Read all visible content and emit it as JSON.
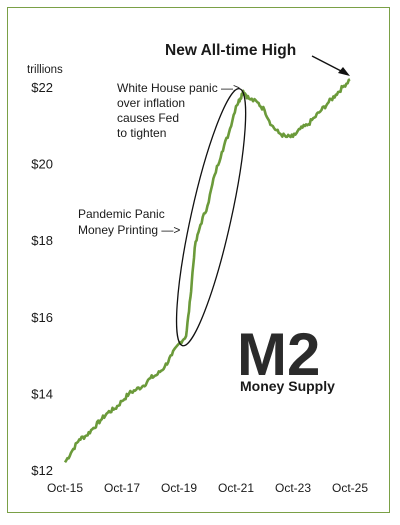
{
  "chart_data": {
    "type": "line",
    "title": "New All-time High",
    "ylabel": "trillions",
    "xlabel": "",
    "ylim": [
      12,
      22.5
    ],
    "xlim": [
      2015.75,
      2025.75
    ],
    "y_ticks": [
      {
        "value": 12,
        "label": "$12"
      },
      {
        "value": 14,
        "label": "$14"
      },
      {
        "value": 16,
        "label": "$16"
      },
      {
        "value": 18,
        "label": "$18"
      },
      {
        "value": 20,
        "label": "$20"
      },
      {
        "value": 22,
        "label": "$22"
      }
    ],
    "x_ticks": [
      {
        "value": 2015.75,
        "label": "Oct-15"
      },
      {
        "value": 2017.75,
        "label": "Oct-17"
      },
      {
        "value": 2019.75,
        "label": "Oct-19"
      },
      {
        "value": 2021.75,
        "label": "Oct-21"
      },
      {
        "value": 2023.75,
        "label": "Oct-23"
      },
      {
        "value": 2025.75,
        "label": "Oct-25"
      }
    ],
    "grid": false,
    "series": [
      {
        "color": "#6b9a3a",
        "points": [
          [
            2015.75,
            12.2
          ],
          [
            2016.0,
            12.5
          ],
          [
            2016.25,
            12.8
          ],
          [
            2016.5,
            12.9
          ],
          [
            2016.75,
            13.1
          ],
          [
            2017.0,
            13.3
          ],
          [
            2017.25,
            13.5
          ],
          [
            2017.5,
            13.6
          ],
          [
            2017.75,
            13.8
          ],
          [
            2018.0,
            14.0
          ],
          [
            2018.25,
            14.1
          ],
          [
            2018.5,
            14.2
          ],
          [
            2018.75,
            14.4
          ],
          [
            2019.0,
            14.5
          ],
          [
            2019.25,
            14.7
          ],
          [
            2019.5,
            15.0
          ],
          [
            2019.75,
            15.3
          ],
          [
            2020.0,
            15.5
          ],
          [
            2020.15,
            16.5
          ],
          [
            2020.3,
            17.8
          ],
          [
            2020.5,
            18.4
          ],
          [
            2020.75,
            18.9
          ],
          [
            2021.0,
            19.7
          ],
          [
            2021.25,
            20.3
          ],
          [
            2021.5,
            20.8
          ],
          [
            2021.75,
            21.5
          ],
          [
            2021.9,
            21.7
          ],
          [
            2022.0,
            21.9
          ],
          [
            2022.2,
            21.7
          ],
          [
            2022.5,
            21.6
          ],
          [
            2022.75,
            21.4
          ],
          [
            2023.0,
            21.0
          ],
          [
            2023.25,
            20.8
          ],
          [
            2023.5,
            20.7
          ],
          [
            2023.75,
            20.7
          ],
          [
            2024.0,
            20.9
          ],
          [
            2024.25,
            21.0
          ],
          [
            2024.5,
            21.2
          ],
          [
            2024.75,
            21.4
          ],
          [
            2025.0,
            21.6
          ],
          [
            2025.25,
            21.8
          ],
          [
            2025.5,
            22.0
          ],
          [
            2025.75,
            22.2
          ]
        ]
      }
    ],
    "annotations": [
      {
        "id": "white-house",
        "lines": [
          "White House panic  —>",
          "over inflation",
          "causes Fed",
          "to tighten"
        ]
      },
      {
        "id": "pandemic",
        "lines": [
          "Pandemic Panic",
          "Money Printing  —>"
        ]
      },
      {
        "id": "logo",
        "big": "M2",
        "small": "Money Supply"
      }
    ],
    "highlight": {
      "from": 2019.95,
      "to": 2021.8,
      "shape": "ellipse"
    }
  }
}
